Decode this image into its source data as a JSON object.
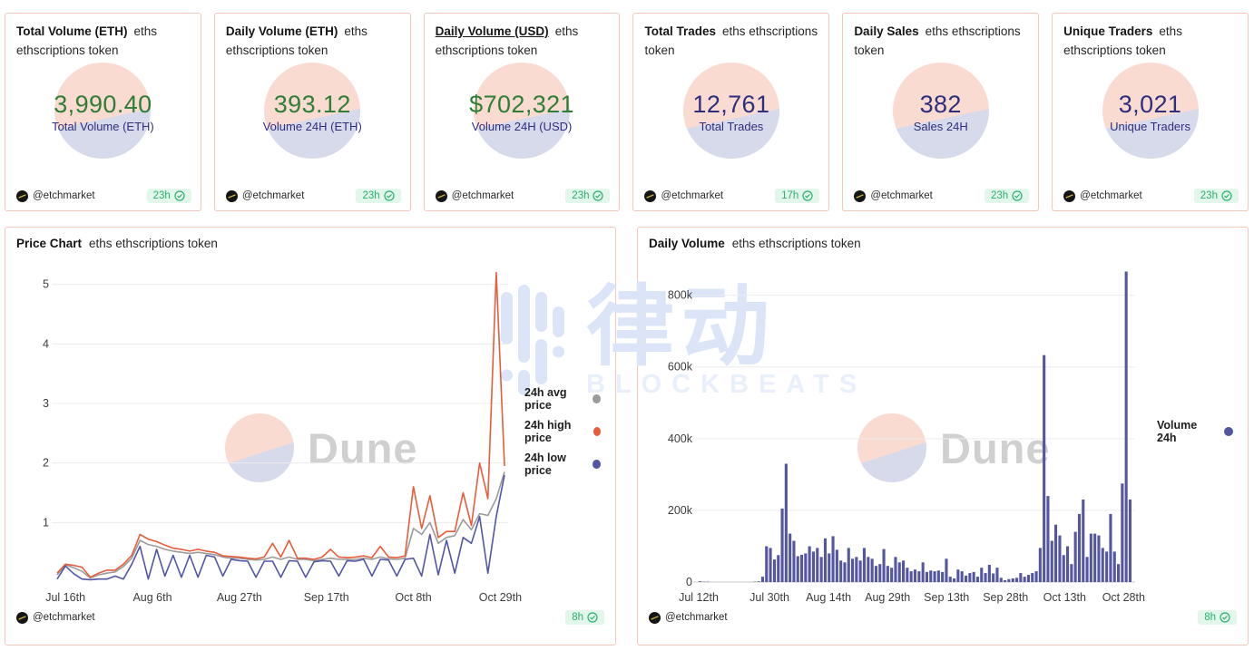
{
  "colors": {
    "card_border": "#f3c7bd",
    "green": "#2f7e35",
    "navy": "#2e2e7e",
    "badge_bg": "#e3f6ec",
    "badge_text": "#2aaf6d",
    "grid": "#ececec",
    "grid_strong": "#c9c9c9",
    "axis_text": "#3c3c3c",
    "dune_pink": "#fadbd2",
    "dune_lav": "#d7daea",
    "dune_text": "#d0d0d0",
    "wm": "#dce4f8",
    "wm_light": "#eaeffc"
  },
  "cards": [
    {
      "title": "Total Volume (ETH)",
      "subtitle": "eths ethscriptions token",
      "value": "3,990.40",
      "value_label": "Total Volume (ETH)",
      "value_color": "green",
      "underlined": false,
      "author": "@etchmarket",
      "age": "23h"
    },
    {
      "title": "Daily Volume (ETH)",
      "subtitle": "eths ethscriptions token",
      "value": "393.12",
      "value_label": "Volume 24H (ETH)",
      "value_color": "green",
      "underlined": false,
      "author": "@etchmarket",
      "age": "23h"
    },
    {
      "title": "Daily Volume (USD)",
      "subtitle": "eths ethscriptions token",
      "value": "$702,321",
      "value_label": "Volume 24H (USD)",
      "value_color": "green",
      "underlined": true,
      "author": "@etchmarket",
      "age": "23h"
    },
    {
      "title": "Total Trades",
      "subtitle": "eths ethscriptions token",
      "value": "12,761",
      "value_label": "Total Trades",
      "value_color": "navy",
      "underlined": false,
      "author": "@etchmarket",
      "age": "17h"
    },
    {
      "title": "Daily Sales",
      "subtitle": "eths ethscriptions token",
      "value": "382",
      "value_label": "Sales 24H",
      "value_color": "navy",
      "underlined": false,
      "author": "@etchmarket",
      "age": "23h"
    },
    {
      "title": "Unique Traders",
      "subtitle": "eths ethscriptions token",
      "value": "3,021",
      "value_label": "Unique Traders",
      "value_color": "navy",
      "underlined": false,
      "author": "@etchmarket",
      "age": "23h"
    }
  ],
  "chart_data": [
    {
      "type": "line",
      "title": "Price Chart",
      "subtitle": "eths ethscriptions token",
      "footer": {
        "author": "@etchmarket",
        "age": "8h"
      },
      "x_domain_days": [
        0,
        108
      ],
      "day_step": 2,
      "x_ticks": [
        {
          "day": 2,
          "label": "Jul 16th"
        },
        {
          "day": 23,
          "label": "Aug 6th"
        },
        {
          "day": 44,
          "label": "Aug 27th"
        },
        {
          "day": 65,
          "label": "Sep 17th"
        },
        {
          "day": 86,
          "label": "Oct 8th"
        },
        {
          "day": 107,
          "label": "Oct 29th"
        }
      ],
      "ylim": [
        0,
        5.3
      ],
      "y_ticks": [
        {
          "v": 1,
          "label": "1"
        },
        {
          "v": 2,
          "label": "2"
        },
        {
          "v": 3,
          "label": "3"
        },
        {
          "v": 4,
          "label": "4"
        },
        {
          "v": 5,
          "label": "5"
        }
      ],
      "legend_position": "right",
      "series": [
        {
          "name": "24h avg price",
          "color": "#9b9b9b",
          "values": [
            0.12,
            0.29,
            0.24,
            0.18,
            0.07,
            0.12,
            0.15,
            0.17,
            0.26,
            0.4,
            0.7,
            0.63,
            0.6,
            0.55,
            0.52,
            0.5,
            0.48,
            0.5,
            0.48,
            0.46,
            0.42,
            0.4,
            0.4,
            0.38,
            0.37,
            0.38,
            0.42,
            0.38,
            0.42,
            0.38,
            0.38,
            0.36,
            0.38,
            0.4,
            0.38,
            0.38,
            0.38,
            0.4,
            0.38,
            0.42,
            0.39,
            0.38,
            0.4,
            0.9,
            0.8,
            1.0,
            0.65,
            0.75,
            0.78,
            1.05,
            0.88,
            1.15,
            1.12,
            1.4,
            1.85
          ]
        },
        {
          "name": "24h high price",
          "color": "#e85c3b",
          "values": [
            0.15,
            0.3,
            0.28,
            0.25,
            0.08,
            0.15,
            0.2,
            0.2,
            0.3,
            0.45,
            0.8,
            0.72,
            0.68,
            0.62,
            0.57,
            0.55,
            0.52,
            0.55,
            0.52,
            0.5,
            0.44,
            0.43,
            0.42,
            0.4,
            0.39,
            0.42,
            0.65,
            0.42,
            0.7,
            0.4,
            0.4,
            0.38,
            0.42,
            0.55,
            0.42,
            0.41,
            0.42,
            0.44,
            0.41,
            0.6,
            0.42,
            0.41,
            0.44,
            1.6,
            0.9,
            1.45,
            0.75,
            0.85,
            0.85,
            1.5,
            0.95,
            2.0,
            1.4,
            5.2,
            1.95
          ]
        },
        {
          "name": "24h low price",
          "color": "#5256a5",
          "values": [
            0.05,
            0.27,
            0.14,
            0.05,
            0.04,
            0.05,
            0.05,
            0.1,
            0.05,
            0.3,
            0.6,
            0.05,
            0.55,
            0.1,
            0.45,
            0.08,
            0.45,
            0.08,
            0.45,
            0.42,
            0.1,
            0.38,
            0.36,
            0.35,
            0.08,
            0.35,
            0.35,
            0.08,
            0.36,
            0.35,
            0.08,
            0.34,
            0.36,
            0.35,
            0.1,
            0.36,
            0.35,
            0.38,
            0.1,
            0.38,
            0.37,
            0.1,
            0.38,
            0.4,
            0.1,
            0.8,
            0.12,
            0.7,
            0.15,
            0.75,
            0.65,
            1.1,
            0.15,
            1.1,
            1.8
          ]
        }
      ]
    },
    {
      "type": "bar",
      "title": "Daily Volume",
      "subtitle": "eths ethscriptions token",
      "footer": {
        "author": "@etchmarket",
        "age": "8h"
      },
      "x_domain_days": [
        0,
        110
      ],
      "day_step": 1,
      "x_ticks": [
        {
          "day": 0,
          "label": "Jul 12th"
        },
        {
          "day": 18,
          "label": "Jul 30th"
        },
        {
          "day": 33,
          "label": "Aug 14th"
        },
        {
          "day": 48,
          "label": "Aug 29th"
        },
        {
          "day": 63,
          "label": "Sep 13th"
        },
        {
          "day": 78,
          "label": "Sep 28th"
        },
        {
          "day": 93,
          "label": "Oct 13th"
        },
        {
          "day": 108,
          "label": "Oct 28th"
        }
      ],
      "ylim": [
        0,
        880000
      ],
      "y_ticks": [
        {
          "v": 0,
          "label": "0"
        },
        {
          "v": 200000,
          "label": "200k"
        },
        {
          "v": 400000,
          "label": "400k"
        },
        {
          "v": 600000,
          "label": "600k"
        },
        {
          "v": 800000,
          "label": "800k"
        }
      ],
      "legend_position": "right",
      "series": [
        {
          "name": "Volume 24h",
          "color": "#54569f",
          "values_k": [
            2,
            1,
            1,
            0,
            0,
            0,
            0,
            0,
            0,
            0,
            0,
            0,
            0,
            0,
            1,
            2,
            15,
            100,
            95,
            63,
            75,
            205,
            330,
            135,
            115,
            72,
            76,
            80,
            100,
            85,
            95,
            70,
            122,
            80,
            128,
            90,
            60,
            55,
            95,
            65,
            70,
            60,
            95,
            70,
            65,
            45,
            50,
            92,
            45,
            40,
            70,
            55,
            60,
            40,
            30,
            35,
            30,
            55,
            28,
            32,
            30,
            32,
            28,
            65,
            15,
            10,
            35,
            30,
            18,
            25,
            28,
            15,
            40,
            25,
            48,
            24,
            40,
            12,
            5,
            8,
            10,
            12,
            25,
            15,
            20,
            25,
            30,
            95,
            633,
            240,
            115,
            160,
            130,
            75,
            100,
            50,
            140,
            190,
            230,
            70,
            135,
            135,
            130,
            95,
            85,
            190,
            85,
            50,
            275,
            866,
            230
          ]
        }
      ]
    }
  ],
  "watermarks": {
    "dune": "Dune",
    "blockbeats_cn": "律动",
    "blockbeats_sub": "BLOCKBEATS"
  }
}
